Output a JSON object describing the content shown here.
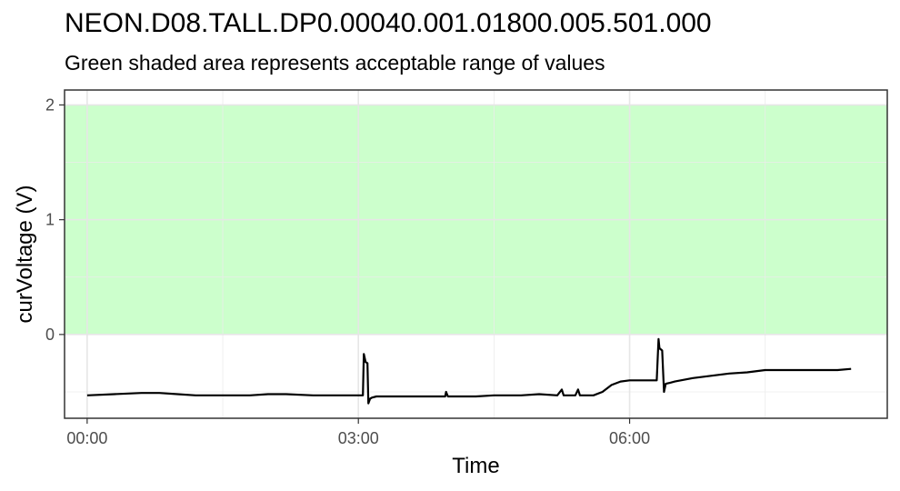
{
  "chart_data": {
    "type": "line",
    "title": "NEON.D08.TALL.DP0.00040.001.01800.005.501.000",
    "subtitle": "Green shaded area represents acceptable range of values",
    "xlabel": "Time",
    "ylabel": "curVoltage (V)",
    "x_unit": "hours",
    "xlim": [
      -0.25,
      8.85
    ],
    "ylim": [
      -0.73,
      2.13
    ],
    "x_ticks": [
      {
        "value": 0,
        "label": "00:00"
      },
      {
        "value": 3,
        "label": "03:00"
      },
      {
        "value": 6,
        "label": "06:00"
      }
    ],
    "y_ticks": [
      {
        "value": 0,
        "label": "0"
      },
      {
        "value": 1,
        "label": "1"
      },
      {
        "value": 2,
        "label": "2"
      }
    ],
    "acceptable_range": {
      "min": 0,
      "max": 2,
      "color": "#ccffcc"
    },
    "grid": true,
    "series": [
      {
        "color": "#000000",
        "x": [
          0,
          0.3,
          0.6,
          0.8,
          1.0,
          1.2,
          1.5,
          1.8,
          2.0,
          2.2,
          2.5,
          2.8,
          3.0,
          3.05,
          3.06,
          3.08,
          3.1,
          3.11,
          3.13,
          3.15,
          3.2,
          3.3,
          3.5,
          3.7,
          3.9,
          3.96,
          3.97,
          3.99,
          4.1,
          4.3,
          4.5,
          4.8,
          5.0,
          5.2,
          5.25,
          5.27,
          5.3,
          5.35,
          5.4,
          5.43,
          5.45,
          5.5,
          5.6,
          5.7,
          5.8,
          5.9,
          6.0,
          6.1,
          6.2,
          6.3,
          6.32,
          6.33,
          6.36,
          6.38,
          6.4,
          6.45,
          6.5,
          6.7,
          6.9,
          7.1,
          7.3,
          7.5,
          7.7,
          7.9,
          8.1,
          8.3,
          8.45
        ],
        "y": [
          -0.53,
          -0.52,
          -0.51,
          -0.51,
          -0.52,
          -0.53,
          -0.53,
          -0.53,
          -0.52,
          -0.52,
          -0.53,
          -0.53,
          -0.53,
          -0.53,
          -0.17,
          -0.24,
          -0.25,
          -0.6,
          -0.56,
          -0.55,
          -0.54,
          -0.54,
          -0.54,
          -0.54,
          -0.54,
          -0.54,
          -0.5,
          -0.54,
          -0.54,
          -0.54,
          -0.53,
          -0.53,
          -0.52,
          -0.53,
          -0.48,
          -0.53,
          -0.53,
          -0.53,
          -0.53,
          -0.48,
          -0.53,
          -0.53,
          -0.53,
          -0.5,
          -0.44,
          -0.41,
          -0.4,
          -0.4,
          -0.4,
          -0.4,
          -0.04,
          -0.12,
          -0.14,
          -0.5,
          -0.43,
          -0.42,
          -0.41,
          -0.38,
          -0.36,
          -0.34,
          -0.33,
          -0.31,
          -0.31,
          -0.31,
          -0.31,
          -0.31,
          -0.3
        ]
      }
    ]
  }
}
